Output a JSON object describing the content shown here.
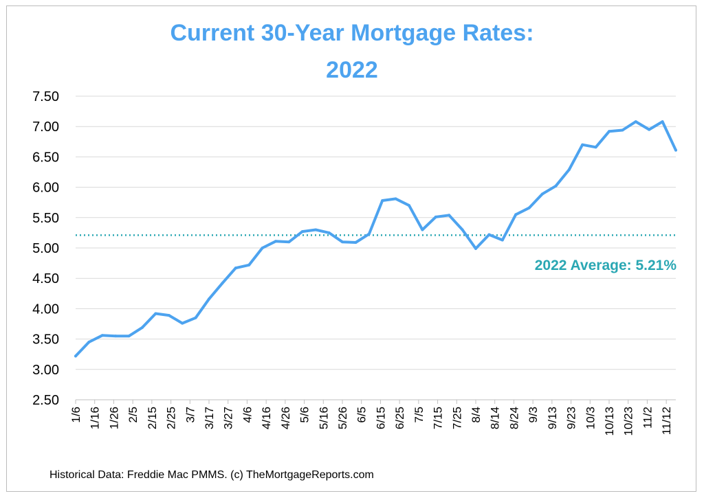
{
  "chart_data": {
    "type": "line",
    "title_lines": [
      "Current 30-Year Mortgage Rates:",
      "2022"
    ],
    "xlabel": "",
    "ylabel": "",
    "ylim": [
      2.5,
      7.5
    ],
    "y_ticks": [
      "7.50",
      "7.00",
      "6.50",
      "6.00",
      "5.50",
      "5.00",
      "4.50",
      "4.00",
      "3.50",
      "3.00",
      "2.50"
    ],
    "x_tick_labels": [
      "1/6",
      "1/16",
      "1/26",
      "2/5",
      "2/15",
      "2/25",
      "3/7",
      "3/17",
      "3/27",
      "4/6",
      "4/16",
      "4/26",
      "5/6",
      "5/16",
      "5/26",
      "6/5",
      "6/15",
      "6/25",
      "7/5",
      "7/15",
      "7/25",
      "8/4",
      "8/14",
      "8/24",
      "9/3",
      "9/13",
      "9/23",
      "10/3",
      "10/13",
      "10/23",
      "11/2",
      "11/12"
    ],
    "x_domain": [
      "1/6",
      "11/17"
    ],
    "grid": "horizontal",
    "series": [
      {
        "color": "#4da3ef",
        "x": [
          "1/6",
          "1/13",
          "1/20",
          "1/27",
          "2/3",
          "2/10",
          "2/17",
          "2/24",
          "3/3",
          "3/10",
          "3/17",
          "3/24",
          "3/31",
          "4/7",
          "4/14",
          "4/21",
          "4/28",
          "5/5",
          "5/12",
          "5/19",
          "5/26",
          "6/2",
          "6/9",
          "6/16",
          "6/23",
          "6/30",
          "7/7",
          "7/14",
          "7/21",
          "7/28",
          "8/4",
          "8/11",
          "8/18",
          "8/25",
          "9/1",
          "9/8",
          "9/15",
          "9/22",
          "9/29",
          "10/6",
          "10/13",
          "10/20",
          "10/27",
          "11/3",
          "11/10",
          "11/17"
        ],
        "values": [
          3.22,
          3.45,
          3.56,
          3.55,
          3.55,
          3.69,
          3.92,
          3.89,
          3.76,
          3.85,
          4.16,
          4.42,
          4.67,
          4.72,
          5.0,
          5.11,
          5.1,
          5.27,
          5.3,
          5.25,
          5.1,
          5.09,
          5.23,
          5.78,
          5.81,
          5.7,
          5.3,
          5.51,
          5.54,
          5.3,
          4.99,
          5.22,
          5.13,
          5.55,
          5.66,
          5.89,
          6.02,
          6.29,
          6.7,
          6.66,
          6.92,
          6.94,
          7.08,
          6.95,
          7.08,
          6.61
        ]
      }
    ],
    "reference_line": {
      "value": 5.21,
      "label": "2022 Average: 5.21%",
      "style": "dotted",
      "color": "#2aa7b3"
    }
  },
  "footer": {
    "source": "Historical Data: Freddie Mac PMMS. (c) TheMortgageReports.com"
  }
}
